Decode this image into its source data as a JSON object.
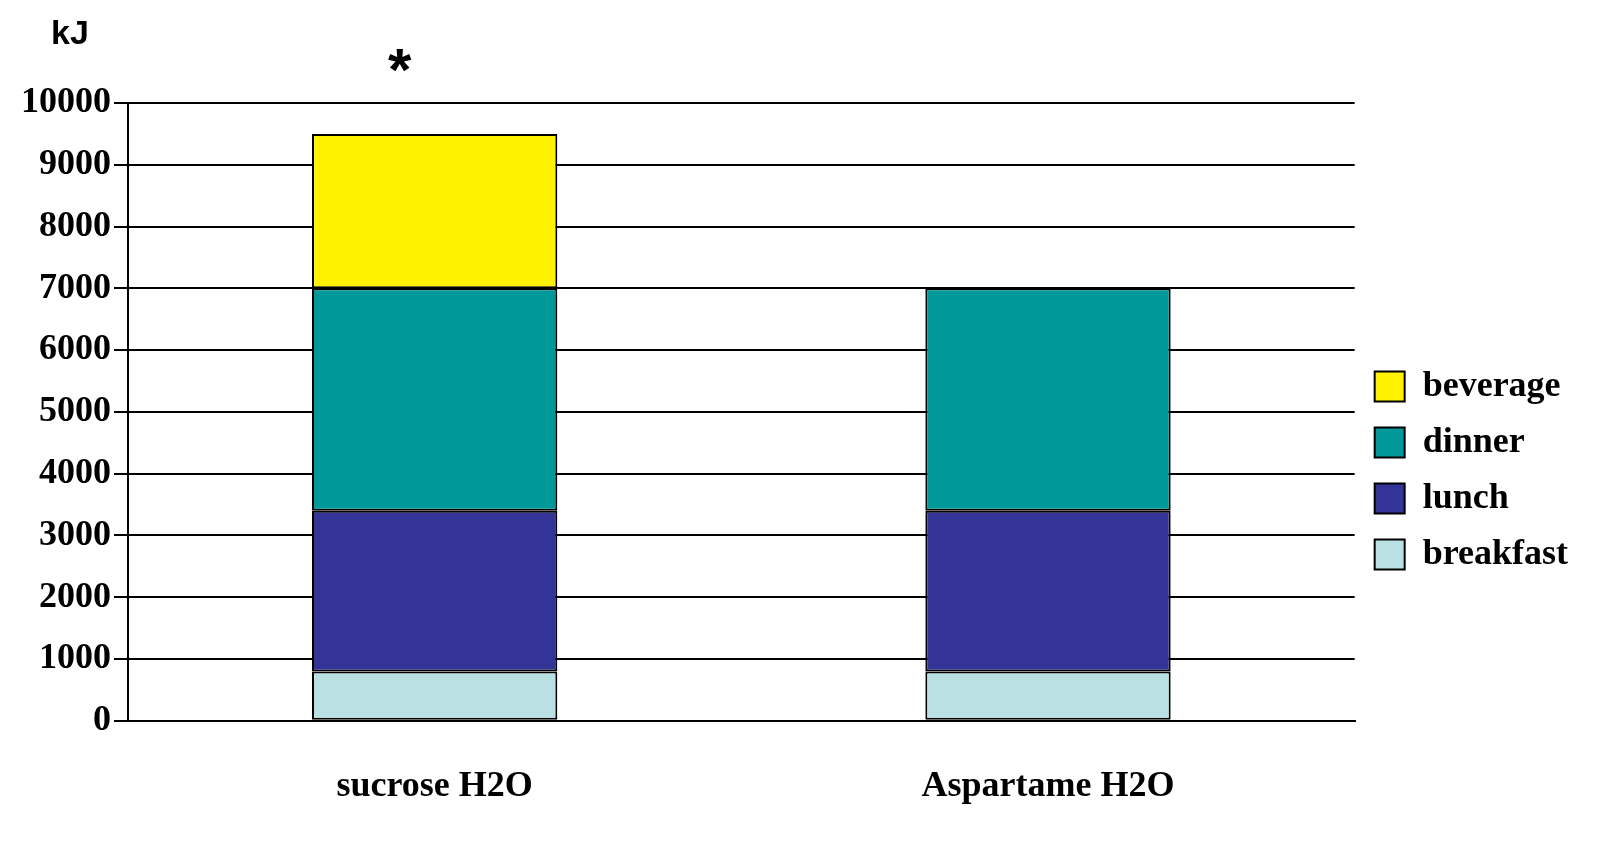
{
  "chart_data": {
    "type": "bar",
    "ylabel": "kJ",
    "categories": [
      "sucrose H2O",
      "Aspartame H2O"
    ],
    "stacked": true,
    "series": [
      {
        "name": "breakfast",
        "color": "#b9e0e3",
        "values": [
          800,
          800
        ]
      },
      {
        "name": "lunch",
        "color": "#343397",
        "values": [
          2600,
          2600
        ]
      },
      {
        "name": "dinner",
        "color": "#009999",
        "values": [
          3600,
          3600
        ]
      },
      {
        "name": "beverage",
        "color": "#fff200",
        "values": [
          2500,
          null
        ]
      }
    ],
    "ylim": [
      0,
      10000
    ],
    "yticks": [
      0,
      1000,
      2000,
      3000,
      4000,
      5000,
      6000,
      7000,
      8000,
      9000,
      10000
    ],
    "grid": "y",
    "legend": "right",
    "annotations": [
      "*"
    ]
  }
}
